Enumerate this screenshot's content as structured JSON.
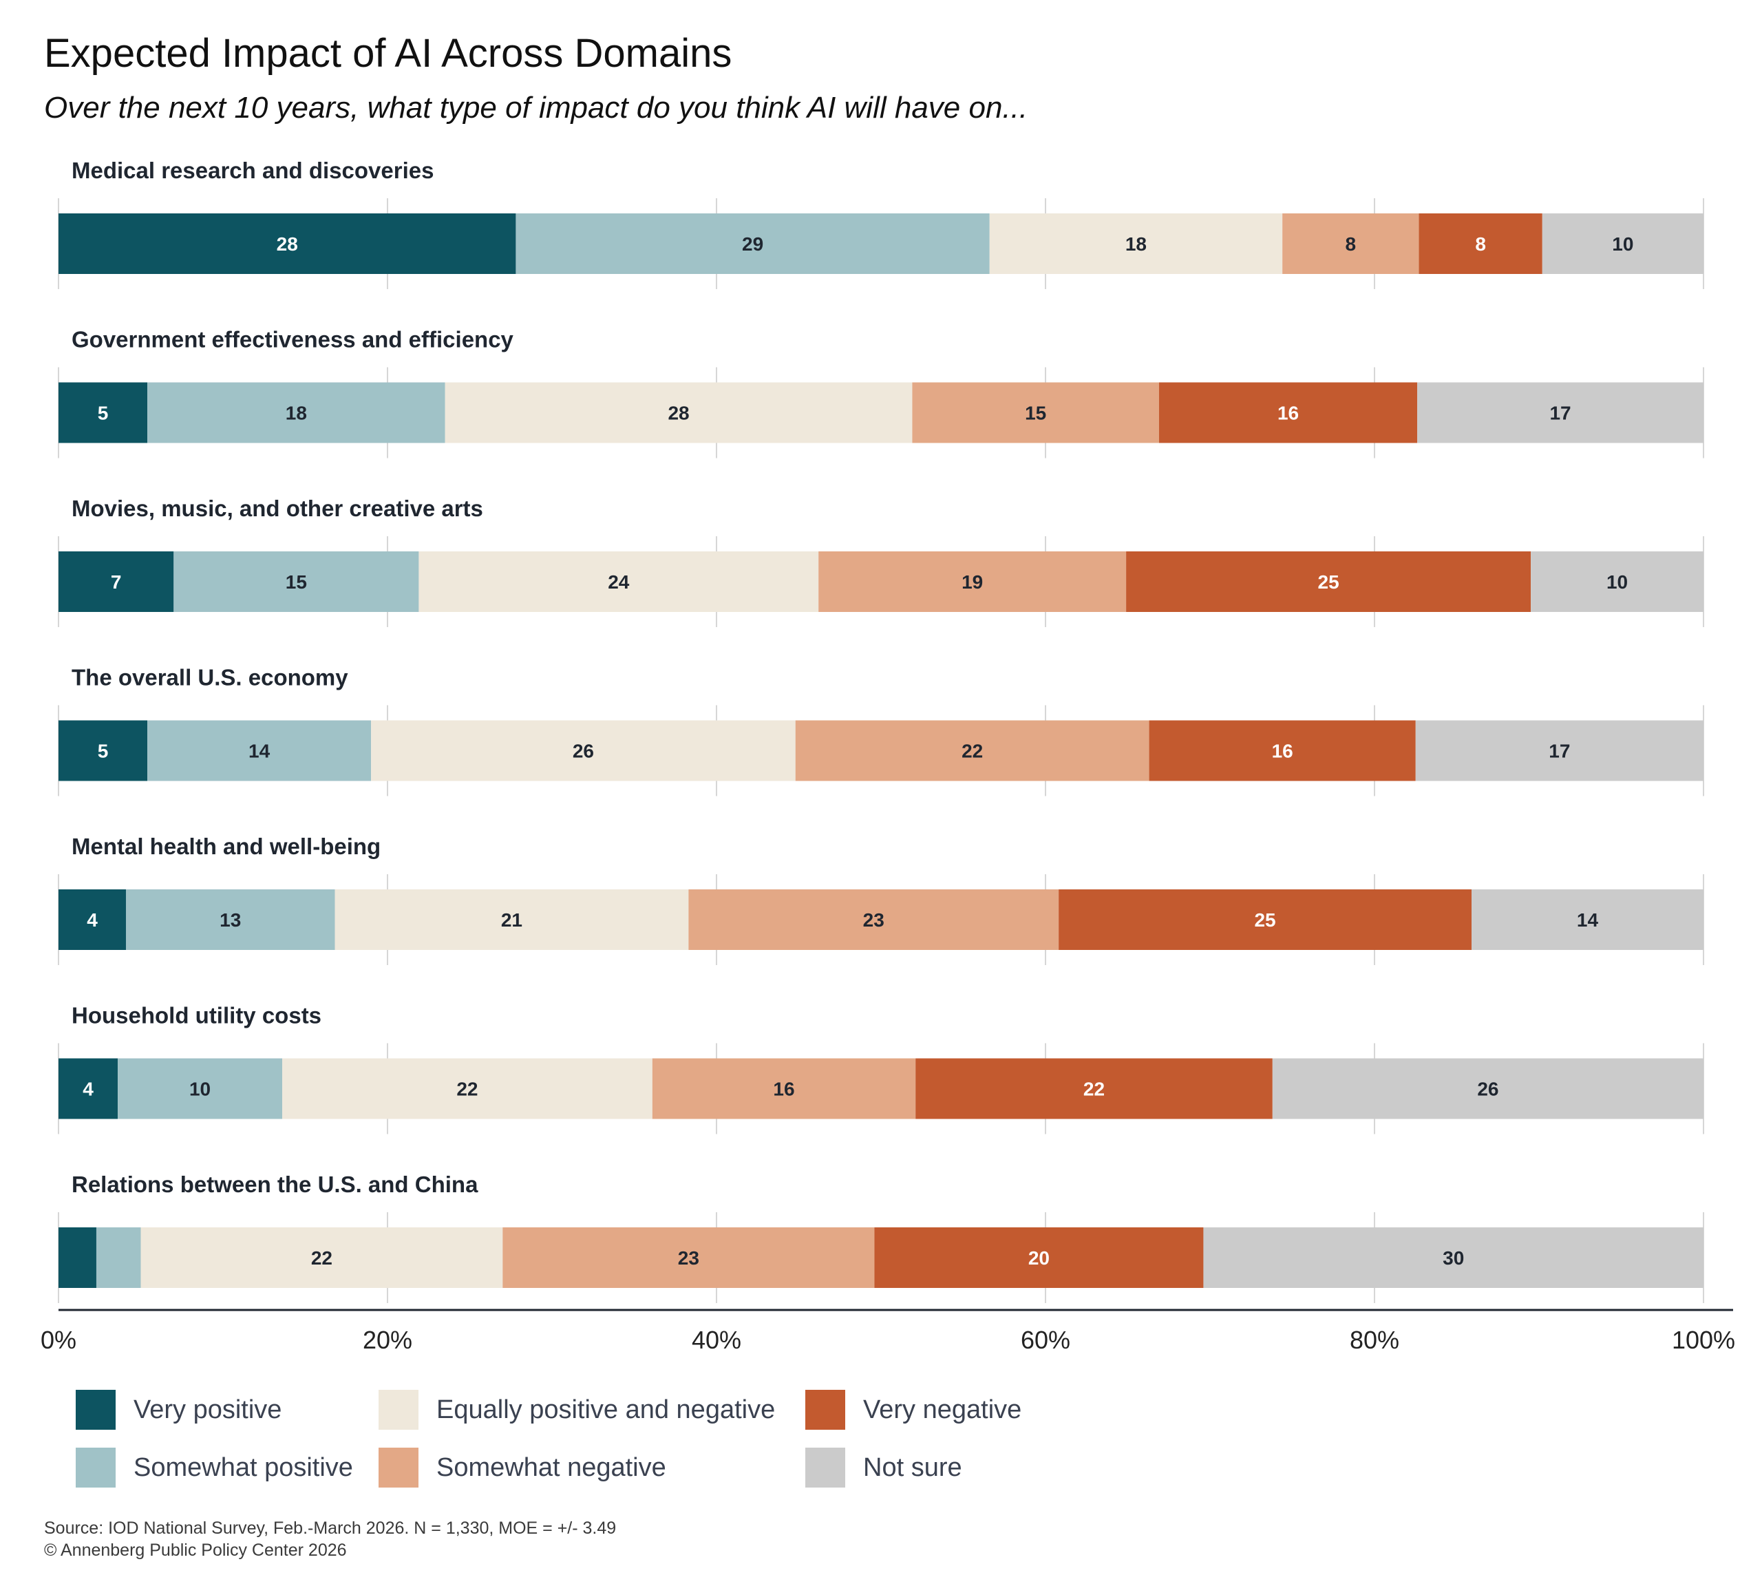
{
  "title": "Expected Impact of AI Across Domains",
  "subtitle": "Over the next 10 years, what type of impact do you think AI will have on...",
  "source": "Source: IOD National Survey, Feb.-March 2026. N = 1,330, MOE = +/- 3.49",
  "copyright": "© Annenberg Public Policy Center 2026",
  "chart_data": {
    "type": "bar",
    "orientation": "horizontal",
    "stacked": true,
    "xlim": [
      0,
      100
    ],
    "x_ticks": [
      "0%",
      "20%",
      "40%",
      "60%",
      "80%",
      "100%"
    ],
    "x_tick_values": [
      0,
      20,
      40,
      60,
      80,
      100
    ],
    "grid": true,
    "legend_position": "bottom",
    "categories": [
      "Medical research and discoveries",
      "Government effectiveness and efficiency",
      "Movies, music, and other creative arts",
      "The overall U.S. economy",
      "Mental health and well-being",
      "Household utility costs",
      "Relations between the U.S. and China"
    ],
    "series": [
      {
        "name": "Very positive",
        "color": "#0d5461",
        "label_color": "#ffffff",
        "values": [
          27.8,
          5.4,
          7.0,
          5.4,
          4.1,
          3.6,
          2.3
        ]
      },
      {
        "name": "Somewhat positive",
        "color": "#a0c2c7",
        "label_color": "#1f2630",
        "values": [
          28.8,
          18.1,
          14.9,
          13.6,
          12.7,
          10.0,
          2.7
        ]
      },
      {
        "name": "Equally positive and negative",
        "color": "#efe8db",
        "label_color": "#1f2630",
        "values": [
          17.8,
          28.4,
          24.3,
          25.8,
          21.5,
          22.5,
          22.0
        ]
      },
      {
        "name": "Somewhat negative",
        "color": "#e3a886",
        "label_color": "#1f2630",
        "values": [
          8.3,
          15.0,
          18.7,
          21.5,
          22.5,
          16.0,
          22.6
        ]
      },
      {
        "name": "Very negative",
        "color": "#c35a2f",
        "label_color": "#ffffff",
        "values": [
          7.5,
          15.7,
          24.6,
          16.2,
          25.1,
          21.7,
          20.0
        ]
      },
      {
        "name": "Not sure",
        "color": "#cbcbcb",
        "label_color": "#1f2630",
        "values": [
          9.8,
          17.4,
          10.5,
          17.5,
          14.1,
          26.2,
          30.4
        ]
      }
    ],
    "data_labels": [
      [
        "28",
        "29",
        "18",
        "8",
        "8",
        "10"
      ],
      [
        "5",
        "18",
        "28",
        "15",
        "16",
        "17"
      ],
      [
        "7",
        "15",
        "24",
        "19",
        "25",
        "10"
      ],
      [
        "5",
        "14",
        "26",
        "22",
        "16",
        "17"
      ],
      [
        "4",
        "13",
        "21",
        "23",
        "25",
        "14"
      ],
      [
        "4",
        "10",
        "22",
        "16",
        "22",
        "26"
      ],
      [
        "",
        "",
        "22",
        "23",
        "20",
        "30"
      ]
    ]
  }
}
